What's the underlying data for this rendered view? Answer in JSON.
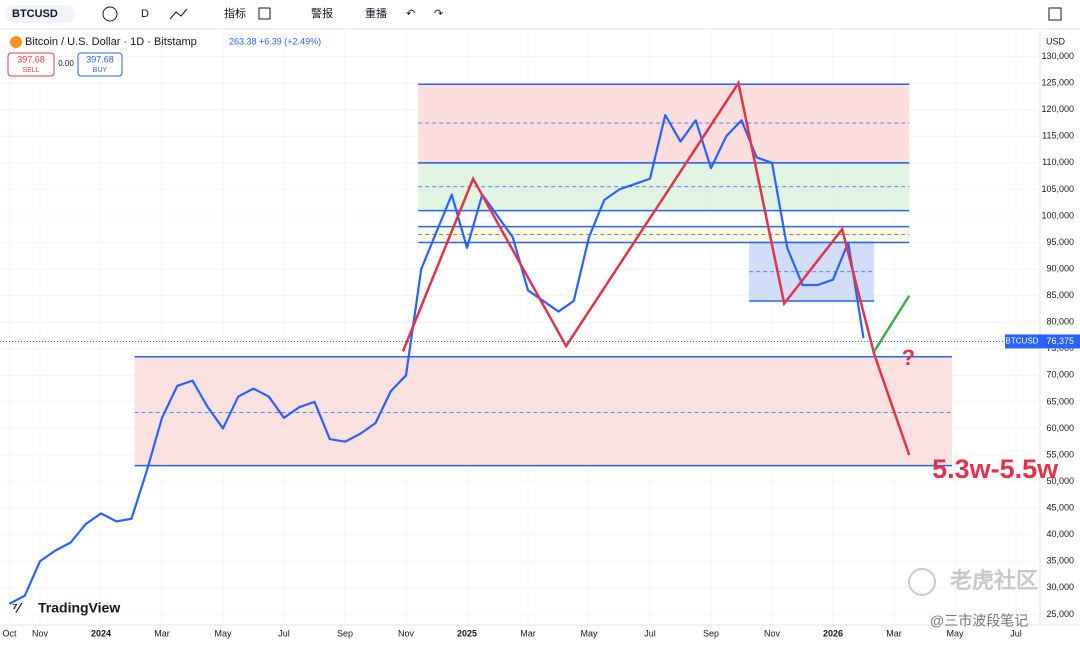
{
  "toolbar": {
    "symbol": "BTCUSD",
    "interval": "D",
    "indicators": "指标",
    "alerts": "警报",
    "replay": "重播"
  },
  "legend": {
    "title": "Bitcoin / U.S. Dollar · 1D · Bitstamp",
    "change": "263.38 +6.39 (+2.49%)",
    "sell_price": "397.68",
    "sell": "SELL",
    "spread": "0.00",
    "buy_price": "397.68",
    "buy": "BUY"
  },
  "currency": "USD",
  "brand": "TradingView",
  "watermark": {
    "site": "老虎社区",
    "author": "@三市波段笔记"
  },
  "chart_data": {
    "type": "line",
    "categories": [
      "Oct",
      null,
      "Nov",
      null,
      null,
      null,
      "2024",
      null,
      null,
      null,
      "Mar",
      null,
      null,
      null,
      "May",
      null,
      null,
      null,
      "Jul",
      null,
      null,
      null,
      "Sep",
      null,
      null,
      null,
      "Nov",
      null,
      null,
      null,
      "2025",
      null,
      null,
      null,
      "Mar",
      null,
      null,
      null,
      "May",
      null,
      null,
      null,
      "Jul",
      null,
      null,
      null,
      "Sep",
      null,
      null,
      null,
      "Nov",
      null,
      null,
      null,
      "2026",
      null,
      null,
      null,
      "Mar",
      null,
      null,
      null,
      "May",
      null,
      null,
      null,
      "Jul"
    ],
    "series": [
      {
        "color": "#2962ff",
        "values": [
          27000,
          28500,
          35000,
          37000,
          38500,
          42000,
          44000,
          42500,
          43000,
          52000,
          62000,
          68000,
          69000,
          64000,
          60000,
          66000,
          67500,
          66000,
          62000,
          64000,
          65000,
          58000,
          57500,
          59000,
          61000,
          67000,
          70000,
          90000,
          97000,
          104000,
          94000,
          104000,
          100000,
          96000,
          86000,
          84000,
          82000,
          84000,
          96000,
          103000,
          105000,
          106000,
          107000,
          119000,
          114000,
          118000,
          109000,
          115000,
          118000,
          111000,
          110000,
          94000,
          87000,
          87000,
          88000,
          95000,
          77000,
          null,
          null,
          null,
          null,
          null,
          null,
          null,
          null,
          null,
          null
        ]
      }
    ],
    "ylim": [
      23000,
      135000
    ],
    "yticks": [
      {
        "value": 130000,
        "label": "130,000"
      },
      {
        "value": 125000,
        "label": "125,000"
      },
      {
        "value": 120000,
        "label": "120,000"
      },
      {
        "value": 115000,
        "label": "115,000"
      },
      {
        "value": 110000,
        "label": "110,000"
      },
      {
        "value": 105000,
        "label": "105,000"
      },
      {
        "value": 100000,
        "label": "100,000"
      },
      {
        "value": 95000,
        "label": "95,000"
      },
      {
        "value": 90000,
        "label": "90,000"
      },
      {
        "value": 85000,
        "label": "85,000"
      },
      {
        "value": 80000,
        "label": "80,000"
      },
      {
        "value": 75000,
        "label": "75,000"
      },
      {
        "value": 70000,
        "label": "70,000"
      },
      {
        "value": 65000,
        "label": "65,000"
      },
      {
        "value": 60000,
        "label": "60,000"
      },
      {
        "value": 55000,
        "label": "55,000"
      },
      {
        "value": 50000,
        "label": "50,000"
      },
      {
        "value": 45000,
        "label": "45,000"
      },
      {
        "value": 40000,
        "label": "40,000"
      },
      {
        "value": 35000,
        "label": "35,000"
      },
      {
        "value": 30000,
        "label": "30,000"
      },
      {
        "value": 25000,
        "label": "25,000"
      }
    ],
    "grid": true,
    "last_price": {
      "symbol": "BTCUSD",
      "value": 76375,
      "label": "76,375",
      "color": "#2962ff"
    },
    "zones": [
      {
        "x0": 8.2,
        "x1": 61.8,
        "y0": 53000,
        "y1": 73500,
        "color": "#fbd9d9",
        "mid": 63000
      },
      {
        "x0": 26.8,
        "x1": 59,
        "y0": 110000,
        "y1": 124800,
        "color": "#fcd6d6",
        "mid": 117500
      },
      {
        "x0": 26.8,
        "x1": 59,
        "y0": 101000,
        "y1": 110000,
        "color": "#d9f0dc",
        "mid": 105500
      },
      {
        "x0": 26.8,
        "x1": 59,
        "y0": 95000,
        "y1": 98000,
        "color": "#fbf6d2",
        "mid": 96500
      },
      {
        "x0": 48.5,
        "x1": 56.7,
        "y0": 84000,
        "y1": 95000,
        "color": "#c7d6f7",
        "mid": 89500
      }
    ],
    "paths": [
      {
        "color": "#e0344a",
        "x": [
          25.8,
          30.4,
          36.5,
          47.8,
          50.8,
          54.6,
          56.7,
          59
        ],
        "y": [
          74500,
          107000,
          75500,
          125000,
          83500,
          97500,
          74000,
          55000
        ]
      },
      {
        "color": "#3fae49",
        "x": [
          56.7,
          59
        ],
        "y": [
          74500,
          85000
        ]
      }
    ],
    "annotations": [
      {
        "text": "?",
        "x": 58.5,
        "y": 73000,
        "color": "#e0344a",
        "size": 22
      },
      {
        "text": "5.3w-5.5w",
        "x": 60.5,
        "y": 52000,
        "color": "#e0344a",
        "size": 27
      }
    ]
  }
}
